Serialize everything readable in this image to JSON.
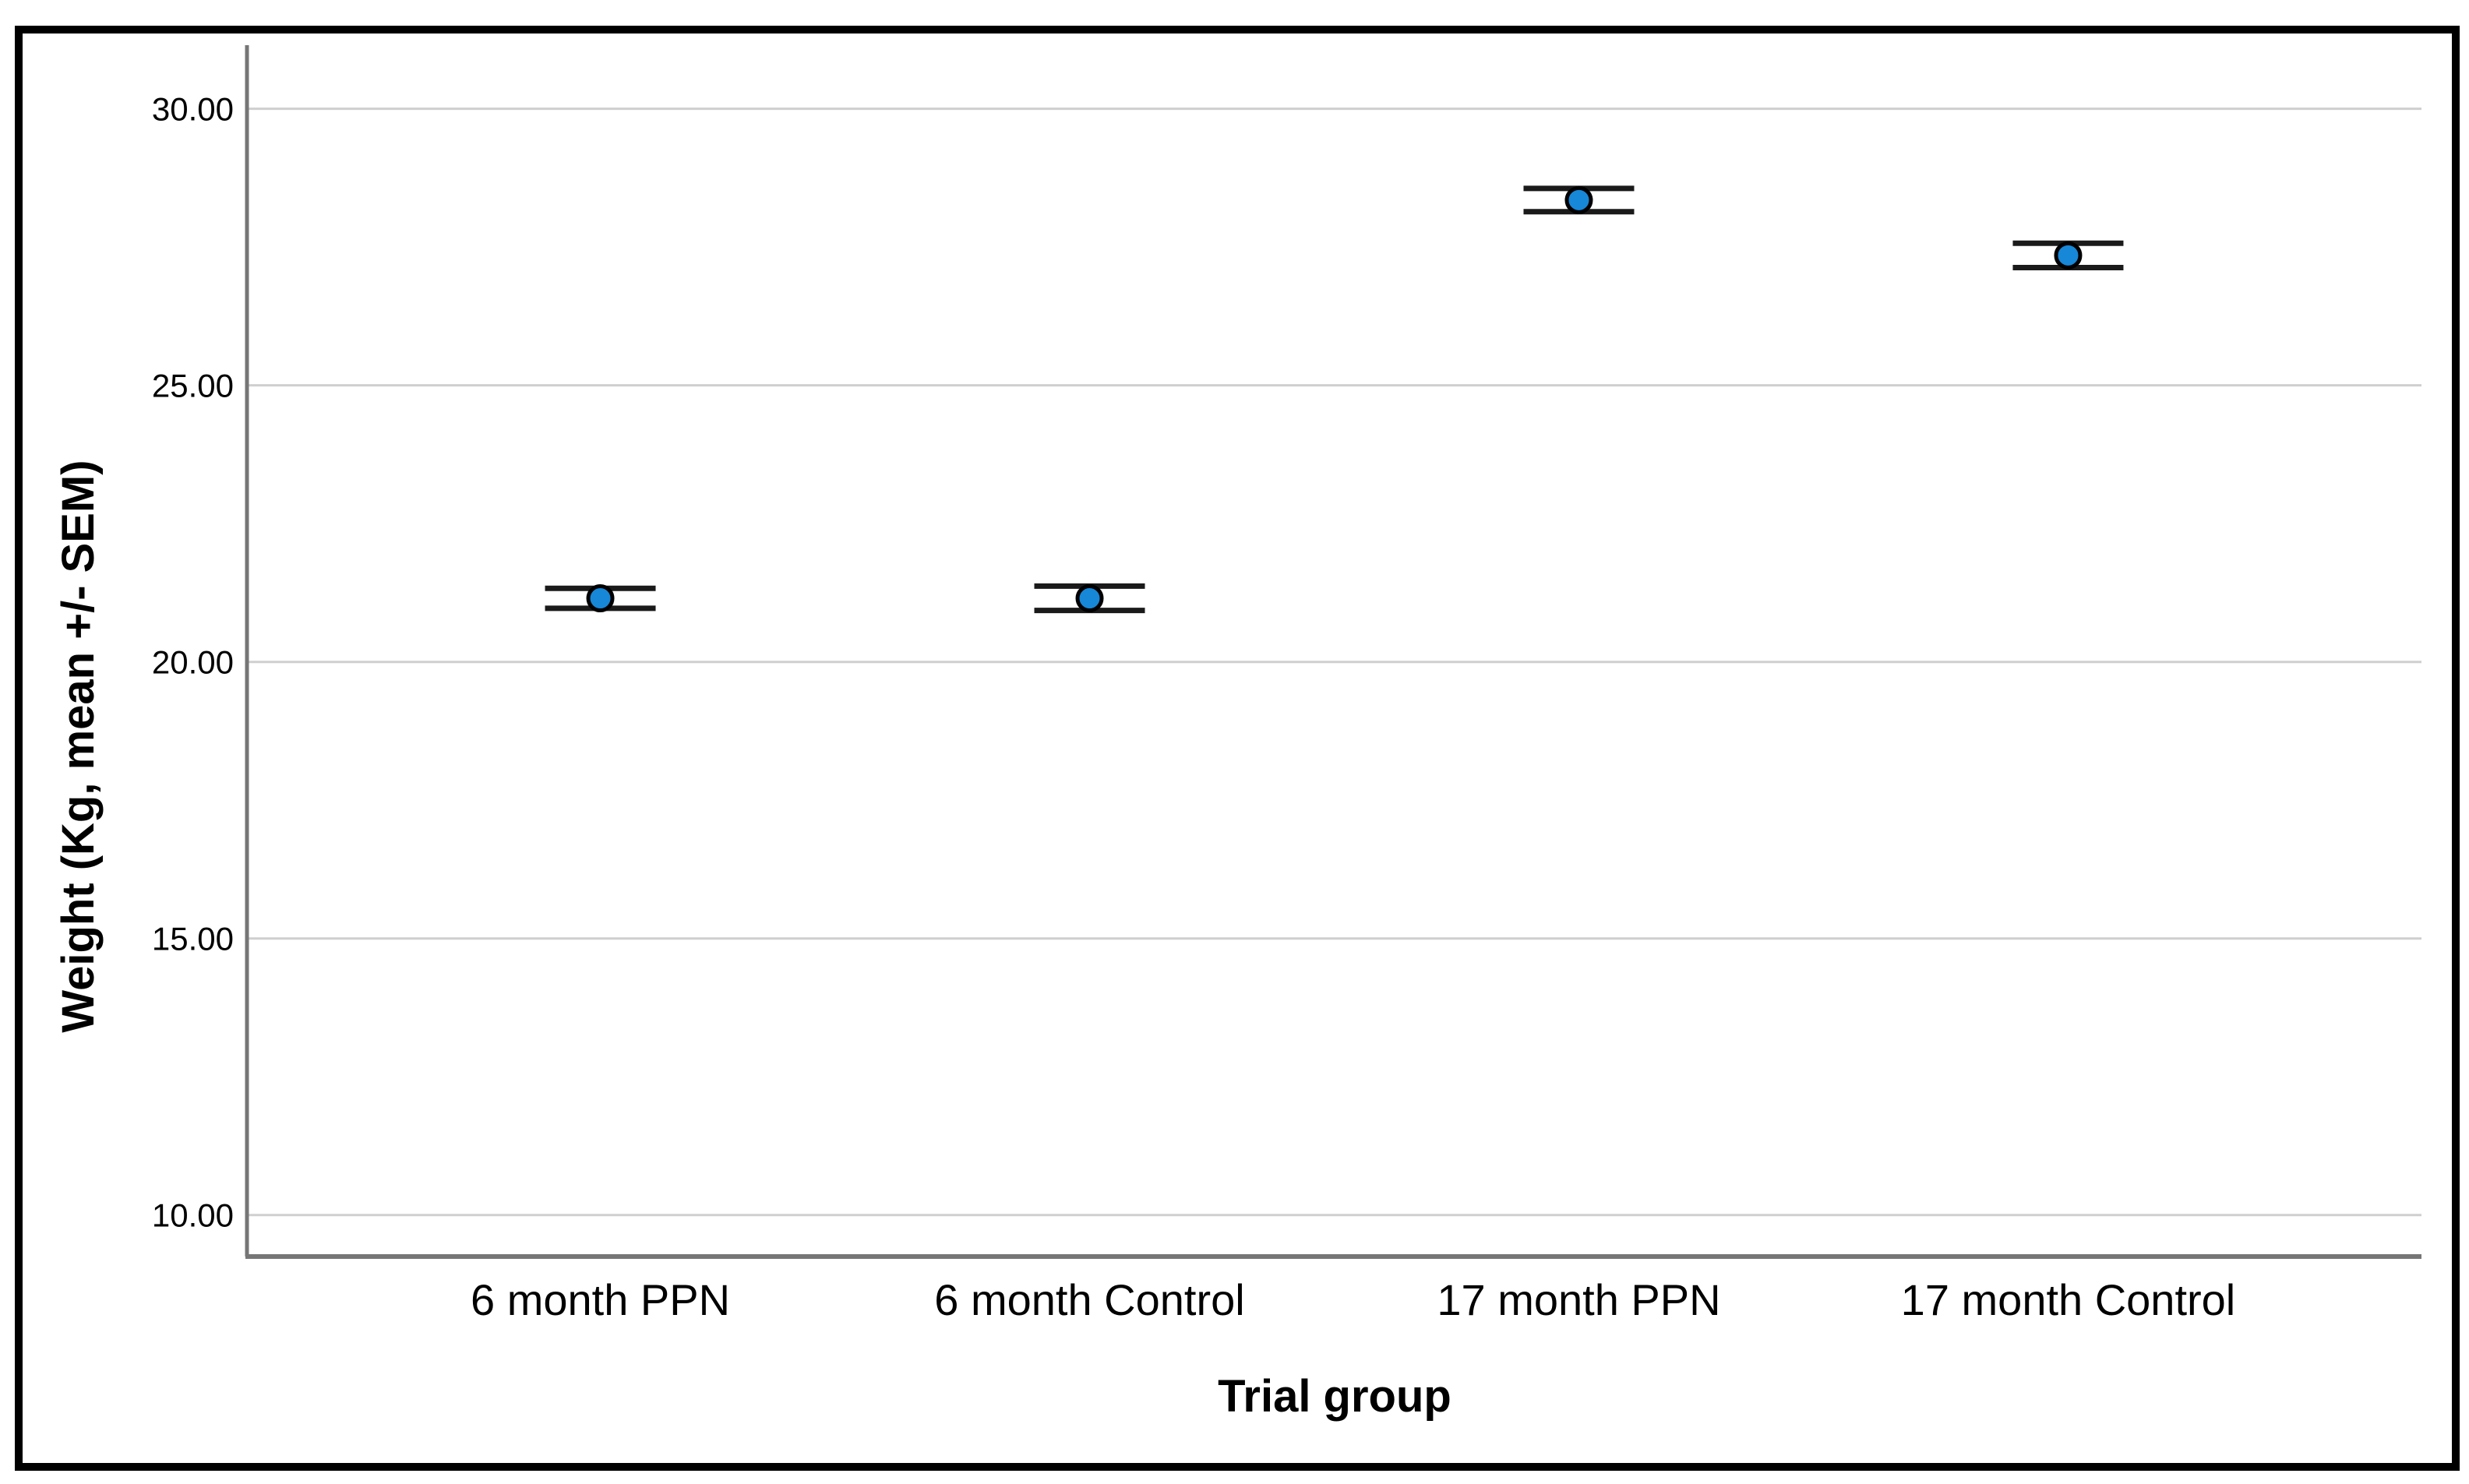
{
  "figure": {
    "background_color": "#ffffff",
    "border_color": "#000000"
  },
  "chart_data": {
    "type": "scatter",
    "subtype": "mean-error-bar-plot",
    "title": "",
    "xlabel": "Trial group",
    "ylabel": "Weight (Kg, mean +/- SEM)",
    "categories": [
      "6 month PPN",
      "6 month Control",
      "17 month PPN",
      "17 month Control"
    ],
    "series": [
      {
        "name": "Weight (Kg), mean +/- SEM",
        "means": [
          21.15,
          21.15,
          28.35,
          27.35
        ],
        "sems": [
          0.18,
          0.22,
          0.21,
          0.22
        ]
      }
    ],
    "ylim": [
      9.25,
      31.15
    ],
    "ytick_values": [
      30,
      25,
      20,
      15,
      10
    ],
    "ytick_labels": [
      "30.00",
      "25.00",
      "20.00",
      "15.00",
      "10.00"
    ],
    "xtick_labels": [
      "6 month PPN",
      "6 month Control",
      "17 month PPN",
      "17 month Control"
    ],
    "grid": "horizontal-major",
    "legend": "none",
    "marker_shape": "circle",
    "marker_color": "#1787D8",
    "marker_outline_color": "#000000",
    "errorbar_color": "#1a1a1a",
    "axis_line_color": "#767676",
    "gridline_color": "#cfcfcf"
  }
}
